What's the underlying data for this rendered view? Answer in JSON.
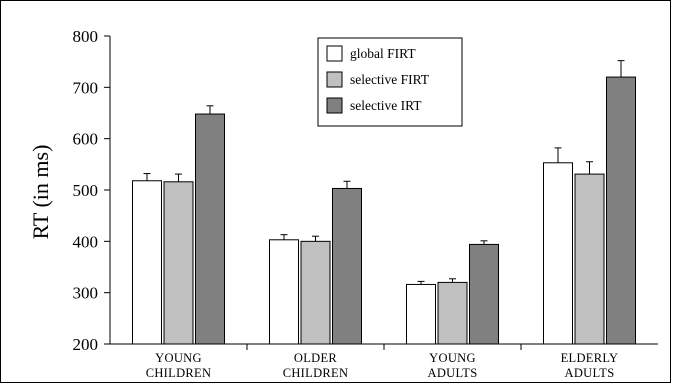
{
  "chart_data": {
    "type": "bar",
    "ylabel": "RT (in ms)",
    "xlabel": "",
    "ylim": [
      200,
      800
    ],
    "yticks": [
      200,
      300,
      400,
      500,
      600,
      700,
      800
    ],
    "categories": [
      [
        "YOUNG",
        "CHILDREN"
      ],
      [
        "OLDER",
        "CHILDREN"
      ],
      [
        "YOUNG",
        "ADULTS"
      ],
      [
        "ELDERLY",
        "ADULTS"
      ]
    ],
    "series": [
      {
        "name": "global FIRT",
        "color": "#ffffff",
        "values": [
          518,
          403,
          316,
          553
        ],
        "errors": [
          14,
          10,
          6,
          29
        ]
      },
      {
        "name": "selective FIRT",
        "color": "#c0c0c0",
        "values": [
          516,
          400,
          320,
          531
        ],
        "errors": [
          15,
          10,
          7,
          24
        ]
      },
      {
        "name": "selective IRT",
        "color": "#808080",
        "values": [
          648,
          503,
          394,
          720
        ],
        "errors": [
          16,
          14,
          7,
          32
        ]
      }
    ],
    "legend_position": "top-center",
    "grid": false,
    "error_bars": "upper"
  }
}
